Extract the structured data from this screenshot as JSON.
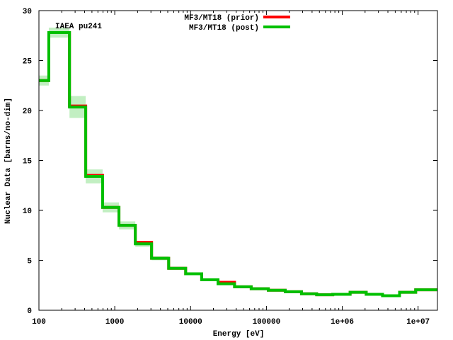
{
  "chart_data": {
    "type": "line",
    "style": "step-histogram",
    "title": "IAEA pu241",
    "xlabel": "Energy [eV]",
    "ylabel": "Nuclear Data [barns/no-dim]",
    "xscale": "log",
    "xlim": [
      100,
      18000000
    ],
    "ylim": [
      0,
      30
    ],
    "xticks": [
      100,
      1000,
      10000,
      100000,
      1000000,
      10000000
    ],
    "xtick_labels": [
      "100",
      "1000",
      "10000",
      "100000",
      "1e+06",
      "1e+07"
    ],
    "yticks": [
      0,
      5,
      10,
      15,
      20,
      25,
      30
    ],
    "ytick_labels": [
      "0",
      "5",
      "10",
      "15",
      "20",
      "25",
      "30"
    ],
    "grid": false,
    "legend_position": "top-center",
    "bin_edges": [
      100,
      135,
      253,
      414,
      692,
      1136,
      1866,
      3060,
      5140,
      8610,
      14000,
      23000,
      38000,
      63000,
      106000,
      177000,
      290000,
      460000,
      750000,
      1270000,
      2070000,
      3400000,
      5700000,
      9300000,
      18000000
    ],
    "series": [
      {
        "name": "MF3/MT18 (prior)",
        "color": "#ff0000",
        "values": [
          23.0,
          27.8,
          20.45,
          13.5,
          10.3,
          8.5,
          6.8,
          5.2,
          4.2,
          3.65,
          3.05,
          2.8,
          2.35,
          2.15,
          2.0,
          1.85,
          1.65,
          1.55,
          1.6,
          1.8,
          1.6,
          1.45,
          1.8,
          2.05
        ]
      },
      {
        "name": "MF3/MT18 (post)",
        "color": "#00c000",
        "values": [
          23.0,
          27.8,
          20.35,
          13.4,
          10.3,
          8.5,
          6.65,
          5.2,
          4.2,
          3.65,
          3.05,
          2.65,
          2.35,
          2.15,
          2.0,
          1.85,
          1.65,
          1.55,
          1.6,
          1.8,
          1.6,
          1.45,
          1.8,
          2.05
        ],
        "uncertainty": [
          0.5,
          0.5,
          1.1,
          0.7,
          0.5,
          0.4,
          0.3,
          0.2,
          0.15,
          0.1,
          0.08,
          0.08,
          0.06,
          0.05,
          0.05,
          0.05,
          0.05,
          0.05,
          0.05,
          0.05,
          0.05,
          0.05,
          0.05,
          0.05
        ]
      }
    ]
  }
}
